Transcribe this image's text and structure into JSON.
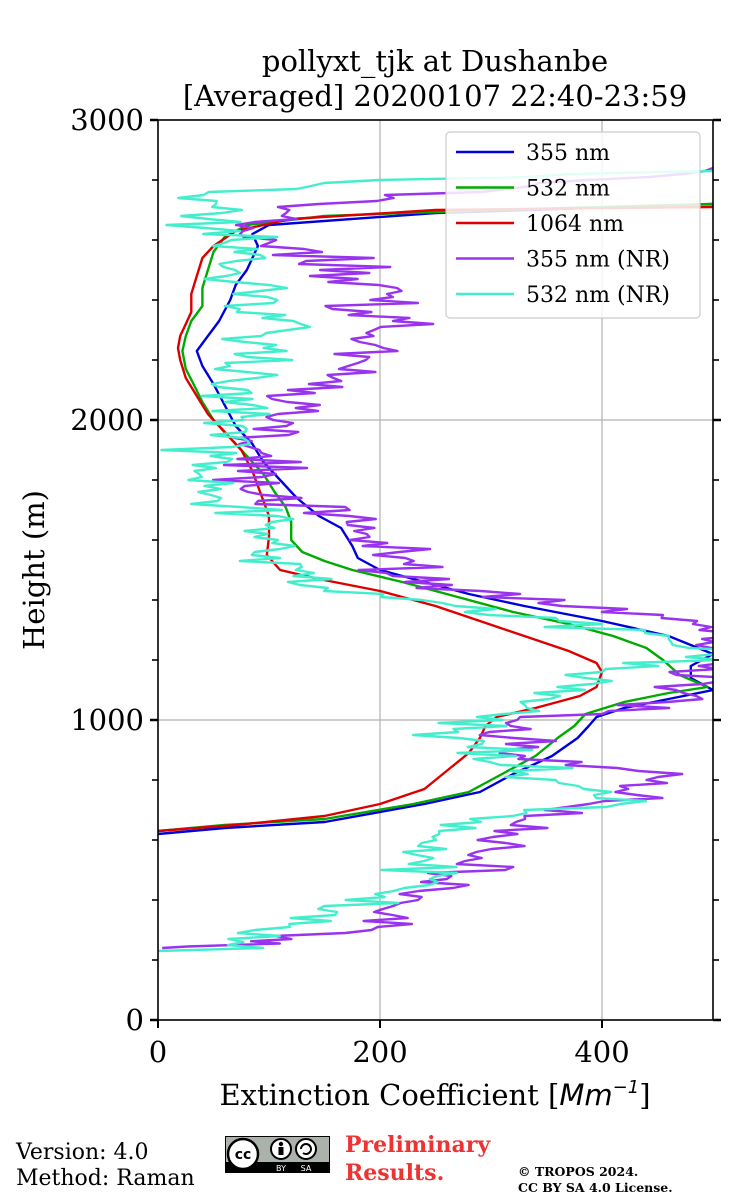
{
  "chart_data": {
    "type": "line",
    "title": "pollyxt_tjk at Dushanbe",
    "subtitle": "[Averaged] 20200107 22:40-23:59",
    "xlabel": "Extinction Coefficient [",
    "xlabel_unit": "Mm",
    "xlabel_exp": "−1",
    "xlabel_close": "]",
    "ylabel": "Height (m)",
    "xlim": [
      0,
      500
    ],
    "ylim": [
      0,
      3000
    ],
    "xticks": [
      0,
      200,
      400
    ],
    "yticks": [
      0,
      1000,
      2000,
      3000
    ],
    "grid": true,
    "legend_position": "top-right",
    "series": [
      {
        "name": "355 nm",
        "color": "#0000dd",
        "noise": 0,
        "points": [
          [
            0,
            620
          ],
          [
            60,
            640
          ],
          [
            150,
            660
          ],
          [
            240,
            720
          ],
          [
            290,
            760
          ],
          [
            320,
            820
          ],
          [
            355,
            880
          ],
          [
            378,
            940
          ],
          [
            388,
            980
          ],
          [
            395,
            1010
          ],
          [
            420,
            1040
          ],
          [
            460,
            1070
          ],
          [
            500,
            1100
          ],
          [
            480,
            1140
          ],
          [
            480,
            1180
          ],
          [
            500,
            1220
          ],
          [
            460,
            1280
          ],
          [
            400,
            1330
          ],
          [
            330,
            1380
          ],
          [
            280,
            1420
          ],
          [
            240,
            1460
          ],
          [
            200,
            1500
          ],
          [
            180,
            1540
          ],
          [
            175,
            1580
          ],
          [
            165,
            1640
          ],
          [
            145,
            1680
          ],
          [
            125,
            1740
          ],
          [
            110,
            1800
          ],
          [
            95,
            1860
          ],
          [
            85,
            1920
          ],
          [
            70,
            1980
          ],
          [
            60,
            2050
          ],
          [
            50,
            2120
          ],
          [
            40,
            2180
          ],
          [
            35,
            2230
          ],
          [
            45,
            2280
          ],
          [
            55,
            2330
          ],
          [
            65,
            2400
          ],
          [
            70,
            2450
          ],
          [
            80,
            2500
          ],
          [
            85,
            2540
          ],
          [
            90,
            2580
          ],
          [
            85,
            2620
          ],
          [
            100,
            2650
          ],
          [
            250,
            2690
          ],
          [
            500,
            2720
          ]
        ]
      },
      {
        "name": "532 nm",
        "color": "#00aa00",
        "noise": 0,
        "points": [
          [
            0,
            630
          ],
          [
            60,
            650
          ],
          [
            150,
            670
          ],
          [
            230,
            720
          ],
          [
            280,
            760
          ],
          [
            310,
            820
          ],
          [
            340,
            880
          ],
          [
            360,
            940
          ],
          [
            375,
            980
          ],
          [
            385,
            1020
          ],
          [
            420,
            1060
          ],
          [
            460,
            1090
          ],
          [
            495,
            1110
          ],
          [
            470,
            1150
          ],
          [
            455,
            1200
          ],
          [
            440,
            1240
          ],
          [
            410,
            1280
          ],
          [
            370,
            1320
          ],
          [
            320,
            1360
          ],
          [
            270,
            1410
          ],
          [
            220,
            1460
          ],
          [
            175,
            1500
          ],
          [
            150,
            1530
          ],
          [
            130,
            1560
          ],
          [
            120,
            1600
          ],
          [
            120,
            1660
          ],
          [
            115,
            1710
          ],
          [
            105,
            1760
          ],
          [
            95,
            1820
          ],
          [
            80,
            1880
          ],
          [
            65,
            1940
          ],
          [
            50,
            2000
          ],
          [
            40,
            2060
          ],
          [
            32,
            2120
          ],
          [
            25,
            2170
          ],
          [
            22,
            2230
          ],
          [
            25,
            2280
          ],
          [
            30,
            2330
          ],
          [
            40,
            2380
          ],
          [
            40,
            2440
          ],
          [
            45,
            2500
          ],
          [
            50,
            2560
          ],
          [
            60,
            2610
          ],
          [
            80,
            2650
          ],
          [
            150,
            2680
          ],
          [
            300,
            2700
          ],
          [
            500,
            2720
          ]
        ]
      },
      {
        "name": "1064 nm",
        "color": "#dd0000",
        "noise": 0,
        "points": [
          [
            0,
            630
          ],
          [
            70,
            650
          ],
          [
            150,
            680
          ],
          [
            200,
            720
          ],
          [
            240,
            770
          ],
          [
            260,
            830
          ],
          [
            280,
            890
          ],
          [
            290,
            940
          ],
          [
            295,
            980
          ],
          [
            305,
            1010
          ],
          [
            340,
            1040
          ],
          [
            380,
            1080
          ],
          [
            395,
            1110
          ],
          [
            400,
            1160
          ],
          [
            395,
            1190
          ],
          [
            370,
            1230
          ],
          [
            330,
            1280
          ],
          [
            290,
            1330
          ],
          [
            250,
            1380
          ],
          [
            200,
            1430
          ],
          [
            145,
            1470
          ],
          [
            110,
            1500
          ],
          [
            98,
            1550
          ],
          [
            100,
            1610
          ],
          [
            100,
            1680
          ],
          [
            92,
            1760
          ],
          [
            85,
            1830
          ],
          [
            75,
            1900
          ],
          [
            60,
            1960
          ],
          [
            45,
            2020
          ],
          [
            35,
            2080
          ],
          [
            25,
            2140
          ],
          [
            20,
            2200
          ],
          [
            18,
            2240
          ],
          [
            20,
            2280
          ],
          [
            25,
            2320
          ],
          [
            30,
            2360
          ],
          [
            30,
            2420
          ],
          [
            35,
            2480
          ],
          [
            40,
            2540
          ],
          [
            50,
            2580
          ],
          [
            70,
            2630
          ],
          [
            120,
            2670
          ],
          [
            250,
            2700
          ],
          [
            500,
            2710
          ]
        ]
      },
      {
        "name": "355 nm (NR)",
        "color": "#9933ee",
        "noise": 55,
        "points": [
          [
            0,
            240
          ],
          [
            30,
            245
          ],
          [
            80,
            255
          ],
          [
            130,
            270
          ],
          [
            170,
            300
          ],
          [
            200,
            330
          ],
          [
            210,
            360
          ],
          [
            230,
            400
          ],
          [
            250,
            440
          ],
          [
            260,
            480
          ],
          [
            280,
            520
          ],
          [
            300,
            560
          ],
          [
            310,
            600
          ],
          [
            330,
            640
          ],
          [
            360,
            680
          ],
          [
            390,
            720
          ],
          [
            420,
            760
          ],
          [
            470,
            790
          ],
          [
            480,
            800
          ],
          [
            430,
            820
          ],
          [
            370,
            850
          ],
          [
            340,
            880
          ],
          [
            320,
            910
          ],
          [
            300,
            940
          ],
          [
            300,
            970
          ],
          [
            310,
            1000
          ],
          [
            380,
            1020
          ],
          [
            440,
            1050
          ],
          [
            480,
            1080
          ],
          [
            500,
            1120
          ],
          [
            480,
            1180
          ],
          [
            500,
            1220
          ],
          [
            500,
            1320
          ],
          [
            420,
            1360
          ],
          [
            300,
            1420
          ],
          [
            230,
            1470
          ],
          [
            220,
            1520
          ],
          [
            210,
            1560
          ],
          [
            200,
            1600
          ],
          [
            200,
            1640
          ],
          [
            170,
            1680
          ],
          [
            120,
            1720
          ],
          [
            100,
            1760
          ],
          [
            90,
            1800
          ],
          [
            90,
            1860
          ],
          [
            100,
            1920
          ],
          [
            110,
            1980
          ],
          [
            120,
            2030
          ],
          [
            130,
            2080
          ],
          [
            150,
            2140
          ],
          [
            170,
            2200
          ],
          [
            200,
            2250
          ],
          [
            210,
            2300
          ],
          [
            200,
            2350
          ],
          [
            190,
            2400
          ],
          [
            180,
            2450
          ],
          [
            170,
            2500
          ],
          [
            140,
            2550
          ],
          [
            100,
            2600
          ],
          [
            80,
            2650
          ],
          [
            120,
            2700
          ],
          [
            250,
            2750
          ],
          [
            400,
            2800
          ],
          [
            500,
            2840
          ]
        ]
      },
      {
        "name": "532 nm (NR)",
        "color": "#44eecc",
        "noise": 55,
        "points": [
          [
            0,
            230
          ],
          [
            60,
            240
          ],
          [
            100,
            260
          ],
          [
            110,
            280
          ],
          [
            120,
            310
          ],
          [
            140,
            340
          ],
          [
            160,
            370
          ],
          [
            180,
            400
          ],
          [
            200,
            440
          ],
          [
            230,
            480
          ],
          [
            250,
            520
          ],
          [
            250,
            560
          ],
          [
            260,
            600
          ],
          [
            270,
            640
          ],
          [
            300,
            680
          ],
          [
            360,
            700
          ],
          [
            420,
            740
          ],
          [
            400,
            760
          ],
          [
            340,
            790
          ],
          [
            330,
            820
          ],
          [
            320,
            860
          ],
          [
            300,
            900
          ],
          [
            280,
            940
          ],
          [
            280,
            980
          ],
          [
            300,
            1010
          ],
          [
            320,
            1040
          ],
          [
            350,
            1070
          ],
          [
            380,
            1100
          ],
          [
            400,
            1140
          ],
          [
            420,
            1170
          ],
          [
            480,
            1200
          ],
          [
            500,
            1240
          ],
          [
            440,
            1280
          ],
          [
            380,
            1320
          ],
          [
            300,
            1360
          ],
          [
            220,
            1400
          ],
          [
            160,
            1440
          ],
          [
            130,
            1480
          ],
          [
            110,
            1520
          ],
          [
            100,
            1560
          ],
          [
            90,
            1600
          ],
          [
            90,
            1640
          ],
          [
            80,
            1680
          ],
          [
            70,
            1720
          ],
          [
            60,
            1760
          ],
          [
            50,
            1800
          ],
          [
            45,
            1860
          ],
          [
            50,
            1920
          ],
          [
            55,
            1980
          ],
          [
            60,
            2040
          ],
          [
            65,
            2100
          ],
          [
            75,
            2160
          ],
          [
            90,
            2220
          ],
          [
            100,
            2280
          ],
          [
            100,
            2340
          ],
          [
            90,
            2400
          ],
          [
            80,
            2460
          ],
          [
            80,
            2520
          ],
          [
            70,
            2580
          ],
          [
            50,
            2640
          ],
          [
            40,
            2700
          ],
          [
            60,
            2750
          ],
          [
            160,
            2790
          ],
          [
            300,
            2810
          ],
          [
            500,
            2830
          ]
        ]
      }
    ]
  },
  "footer": {
    "version": "Version: 4.0",
    "method": "Method: Raman",
    "preliminary": "Preliminary Results.",
    "copyright_line1": "© TROPOS 2024.",
    "copyright_line2": "CC BY SA 4.0 License.",
    "license_badge": [
      "cc",
      "BY",
      "SA"
    ]
  }
}
